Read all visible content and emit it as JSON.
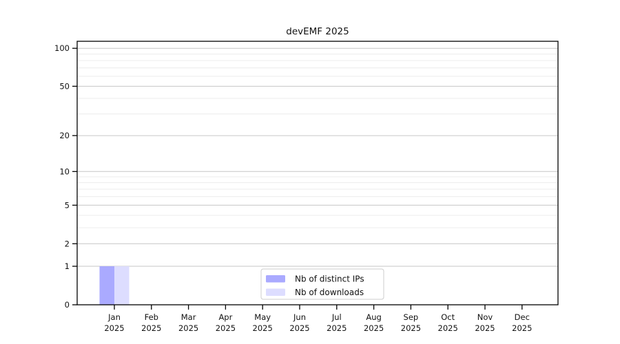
{
  "chart_data": {
    "type": "bar",
    "title": "devEMF 2025",
    "categories": [
      "Jan",
      "Feb",
      "Mar",
      "Apr",
      "May",
      "Jun",
      "Jul",
      "Aug",
      "Sep",
      "Oct",
      "Nov",
      "Dec"
    ],
    "category_year": "2025",
    "series": [
      {
        "name": "Nb of distinct IPs",
        "color": "#aaaaff",
        "values": [
          1,
          0,
          0,
          0,
          0,
          0,
          0,
          0,
          0,
          0,
          0,
          0
        ]
      },
      {
        "name": "Nb of downloads",
        "color": "#ddddff",
        "values": [
          1,
          0,
          0,
          0,
          0,
          0,
          0,
          0,
          0,
          0,
          0,
          0
        ]
      }
    ],
    "xlabel": "",
    "ylabel": "",
    "y_scale": "log10(1+x)",
    "y_ticks": [
      0,
      1,
      2,
      5,
      10,
      20,
      50,
      100
    ],
    "y_minor_gridlines": [
      3,
      4,
      6,
      7,
      8,
      9,
      30,
      40,
      60,
      70,
      80,
      90
    ],
    "ylim": [
      0,
      115
    ],
    "grid": "horizontal",
    "legend_position": "lower center",
    "colors": {
      "frame": "#000000",
      "major_grid": "#c6c6c6",
      "minor_grid": "#ececec",
      "legend_border": "#cccccc",
      "background": "#ffffff"
    }
  }
}
